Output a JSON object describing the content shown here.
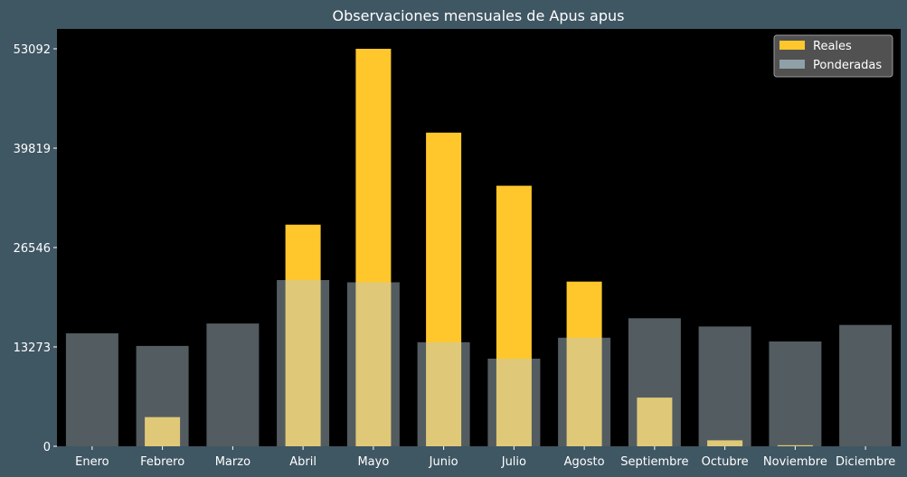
{
  "chart_data": {
    "type": "bar",
    "title": "Observaciones mensuales de Apus apus",
    "xlabel": "",
    "ylabel": "",
    "categories": [
      "Enero",
      "Febrero",
      "Marzo",
      "Abril",
      "Mayo",
      "Junio",
      "Julio",
      "Agosto",
      "Septiembre",
      "Octubre",
      "Noviembre",
      "Diciembre"
    ],
    "yticks": [
      0,
      13273,
      26546,
      39819,
      53092
    ],
    "ylim": [
      0,
      53092
    ],
    "grid": false,
    "legend_position": "top-right",
    "series": [
      {
        "name": "Reales",
        "color": "#ffc72c",
        "values": [
          0,
          3900,
          0,
          29600,
          53092,
          41900,
          34800,
          22000,
          6500,
          800,
          150,
          0
        ]
      },
      {
        "name": "Ponderadas",
        "color": "#6e878f",
        "values": [
          15100,
          13400,
          16400,
          22200,
          21900,
          13900,
          11700,
          14500,
          17100,
          16000,
          14000,
          16200
        ]
      }
    ]
  },
  "colors": {
    "background": "#3f5663",
    "plot_background": "#000000",
    "reales": "#ffc72c",
    "ponderadas": "#6e878f"
  }
}
